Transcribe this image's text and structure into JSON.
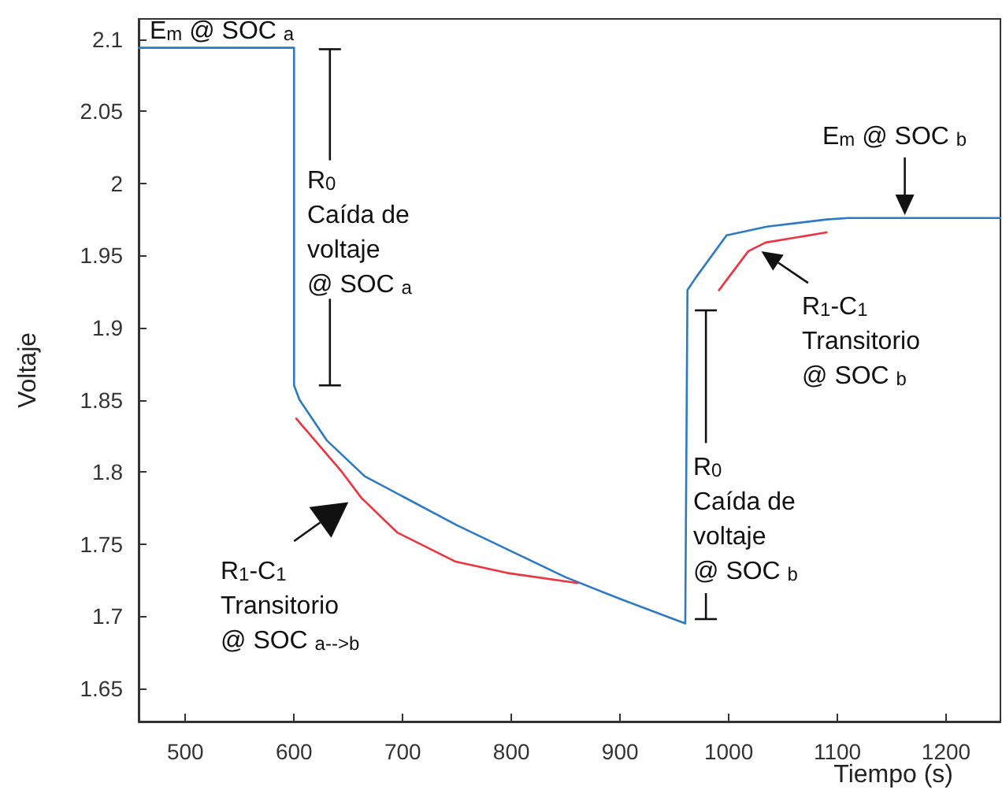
{
  "chart_data": {
    "type": "line",
    "xlabel": "Tiempo (s)",
    "ylabel": "Voltaje",
    "xlim": [
      457,
      1250
    ],
    "ylim": [
      1.627,
      2.114
    ],
    "xticks": [
      500,
      600,
      700,
      800,
      900,
      1000,
      1100,
      1200
    ],
    "yticks": [
      1.65,
      1.7,
      1.75,
      1.8,
      1.85,
      1.9,
      1.95,
      2,
      2.05,
      2.1
    ],
    "grid": false,
    "marker": "none",
    "line_style": "solid",
    "series": [
      {
        "color": "#2b7bc4",
        "x": [
          457,
          600,
          600,
          605,
          630,
          665,
          700,
          750,
          800,
          850,
          900,
          960,
          962,
          970,
          998,
          1035,
          1090,
          1110,
          1250
        ],
        "values": [
          2.094,
          2.094,
          1.86,
          1.85,
          1.822,
          1.797,
          1.783,
          1.763,
          1.745,
          1.727,
          1.712,
          1.695,
          1.926,
          1.935,
          1.964,
          1.97,
          1.975,
          1.976,
          1.976
        ]
      },
      {
        "color": "#ee3340",
        "x": [
          602,
          643,
          662,
          695,
          748,
          796,
          861
        ],
        "values": [
          1.837,
          1.801,
          1.782,
          1.758,
          1.738,
          1.73,
          1.723
        ]
      },
      {
        "color": "#ee3340",
        "x": [
          991,
          1018,
          1034,
          1090
        ],
        "values": [
          1.926,
          1.953,
          1.959,
          1.966
        ]
      }
    ],
    "annotations": [
      "E$_{m}$ @ SOC $_{a}$",
      "R$_{0}$\nCaída de\nvoltaje\n@ SOC $_{a}$",
      "R$_{1}$-C$_{1}$\nTransitorio\n@ SOC $_{a-->b}$",
      "R$_{0}$\nCaída de\nvoltaje\n@ SOC $_{b}$",
      "R$_{1}$-C$_{1}$\nTransitorio\n@ SOC $_{b}$",
      "E$_{m}$ @ SOC $_{b}$"
    ]
  }
}
